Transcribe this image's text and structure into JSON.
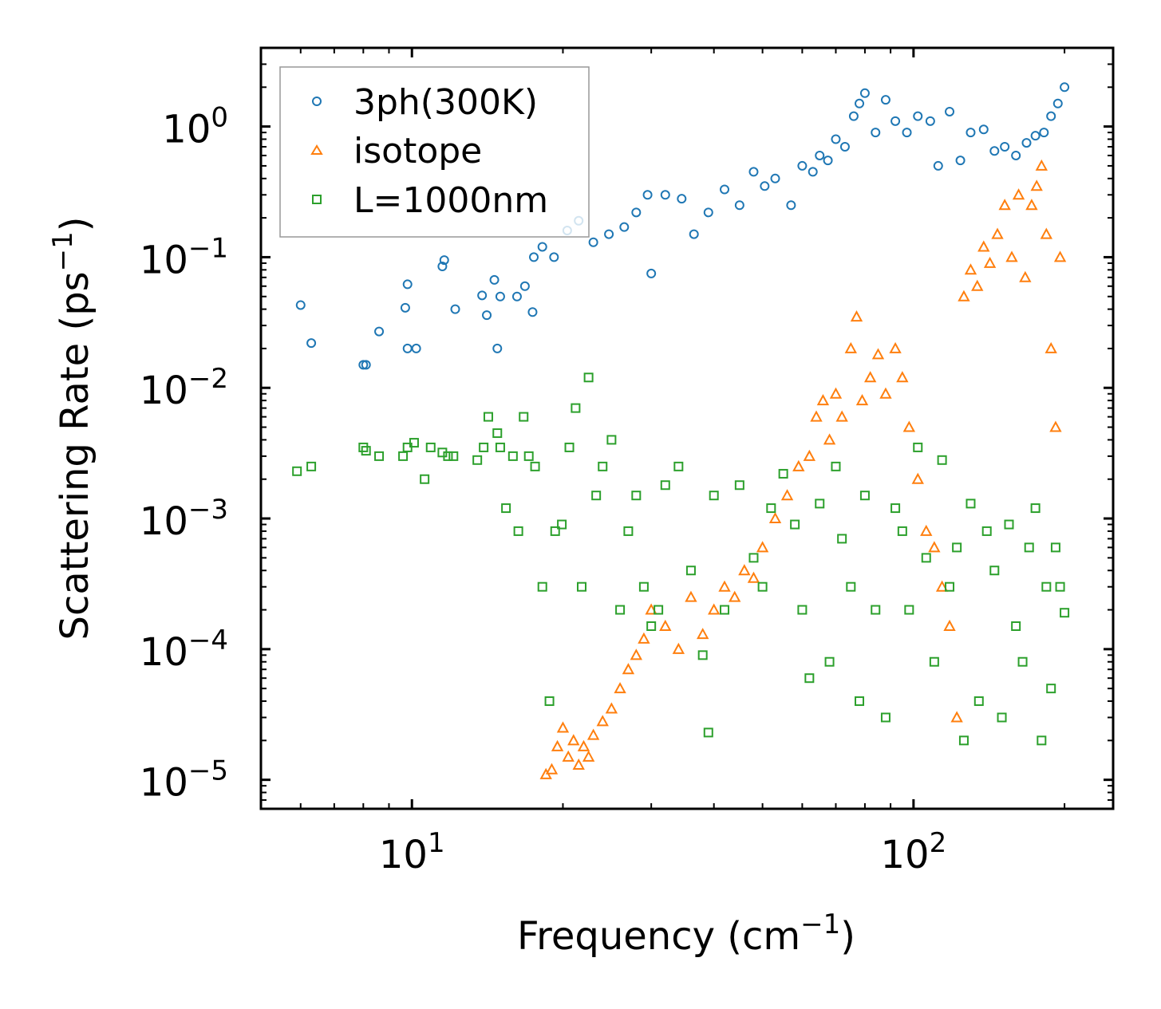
{
  "chart_data": {
    "type": "scatter",
    "xscale": "log",
    "yscale": "log",
    "xlim": [
      5,
      250
    ],
    "ylim": [
      6e-06,
      4
    ],
    "xlabel": {
      "text": "Frequency (cm",
      "sup": "−1",
      "close": ")"
    },
    "ylabel": {
      "text": "Scattering Rate (ps",
      "sup": "−1",
      "close": ")"
    },
    "xticks": [
      {
        "value": 10,
        "base": "10",
        "exp": "1"
      },
      {
        "value": 100,
        "base": "10",
        "exp": "2"
      }
    ],
    "yticks": [
      {
        "value": 1,
        "base": "10",
        "exp": "0"
      },
      {
        "value": 0.1,
        "base": "10",
        "exp": "−1"
      },
      {
        "value": 0.01,
        "base": "10",
        "exp": "−2"
      },
      {
        "value": 0.001,
        "base": "10",
        "exp": "−3"
      },
      {
        "value": 0.0001,
        "base": "10",
        "exp": "−4"
      },
      {
        "value": 1e-05,
        "base": "10",
        "exp": "−5"
      }
    ],
    "legend_position": "top-left",
    "series": [
      {
        "name": "3ph(300K)",
        "marker": "circle",
        "color": "#1f77b4",
        "x": [
          6.0,
          6.3,
          8.0,
          8.1,
          8.6,
          9.7,
          9.8,
          9.8,
          10.2,
          11.5,
          11.6,
          12.2,
          13.8,
          14.1,
          14.6,
          14.8,
          15.0,
          16.2,
          16.8,
          17.4,
          17.5,
          18.2,
          19.2,
          20.4,
          21.5,
          23.0,
          24.7,
          26.5,
          28.0,
          29.5,
          30.0,
          32.0,
          34.5,
          36.5,
          39.0,
          42.0,
          45.0,
          48.0,
          50.5,
          53.0,
          57.0,
          60.0,
          63.0,
          65.0,
          67.5,
          70.0,
          73.0,
          76.0,
          78.0,
          80.0,
          84.0,
          88.0,
          92.0,
          97.0,
          102.0,
          108.0,
          112.0,
          118.0,
          124.0,
          130.0,
          138.0,
          145.0,
          152.0,
          160.0,
          168.0,
          175.0,
          182.0,
          188.0,
          194.0,
          200.0
        ],
        "y": [
          0.043,
          0.022,
          0.015,
          0.015,
          0.027,
          0.041,
          0.062,
          0.02,
          0.02,
          0.085,
          0.095,
          0.04,
          0.051,
          0.036,
          0.067,
          0.02,
          0.05,
          0.05,
          0.06,
          0.038,
          0.1,
          0.12,
          0.1,
          0.16,
          0.19,
          0.13,
          0.15,
          0.17,
          0.22,
          0.3,
          0.075,
          0.3,
          0.28,
          0.15,
          0.22,
          0.33,
          0.25,
          0.45,
          0.35,
          0.4,
          0.25,
          0.5,
          0.45,
          0.6,
          0.55,
          0.8,
          0.7,
          1.2,
          1.5,
          1.8,
          0.9,
          1.6,
          1.1,
          0.9,
          1.2,
          1.1,
          0.5,
          1.3,
          0.55,
          0.9,
          0.95,
          0.65,
          0.7,
          0.6,
          0.75,
          0.85,
          0.9,
          1.2,
          1.5,
          2.0
        ]
      },
      {
        "name": "isotope",
        "marker": "triangle",
        "color": "#ff7f0e",
        "x": [
          18.5,
          19.0,
          19.5,
          20.0,
          20.5,
          21.0,
          21.5,
          22.0,
          22.5,
          23.0,
          24.0,
          25.0,
          26.0,
          27.0,
          28.0,
          29.0,
          30.0,
          32.0,
          34.0,
          36.0,
          38.0,
          40.0,
          42.0,
          44.0,
          46.0,
          48.0,
          50.0,
          53.0,
          56.0,
          59.0,
          62.0,
          64.0,
          66.0,
          68.0,
          70.0,
          72.0,
          75.0,
          77.0,
          79.0,
          82.0,
          85.0,
          88.0,
          92.0,
          95.0,
          98.0,
          102.0,
          106.0,
          110.0,
          114.0,
          118.0,
          122.0,
          126.0,
          130.0,
          134.0,
          138.0,
          142.0,
          147.0,
          152.0,
          157.0,
          162.0,
          167.0,
          172.0,
          176.0,
          180.0,
          184.0,
          188.0,
          192.0,
          196.0
        ],
        "y": [
          1.1e-05,
          1.2e-05,
          1.8e-05,
          2.5e-05,
          1.5e-05,
          2e-05,
          1.3e-05,
          1.8e-05,
          1.5e-05,
          2.2e-05,
          2.8e-05,
          3.5e-05,
          5e-05,
          7e-05,
          9e-05,
          0.00012,
          0.0002,
          0.00015,
          0.0001,
          0.00025,
          0.00013,
          0.0002,
          0.0003,
          0.00025,
          0.0004,
          0.00035,
          0.0006,
          0.001,
          0.0015,
          0.0025,
          0.003,
          0.006,
          0.008,
          0.004,
          0.009,
          0.006,
          0.02,
          0.035,
          0.008,
          0.012,
          0.018,
          0.009,
          0.02,
          0.012,
          0.005,
          0.002,
          0.0008,
          0.0006,
          0.0003,
          0.00015,
          3e-05,
          0.05,
          0.08,
          0.06,
          0.12,
          0.09,
          0.15,
          0.25,
          0.1,
          0.3,
          0.07,
          0.25,
          0.35,
          0.5,
          0.15,
          0.02,
          0.005,
          0.1
        ]
      },
      {
        "name": "L=1000nm",
        "marker": "square",
        "color": "#2ca02c",
        "x": [
          5.9,
          6.3,
          8.0,
          8.1,
          8.6,
          9.6,
          9.8,
          10.1,
          10.6,
          10.9,
          11.5,
          11.8,
          12.1,
          13.5,
          13.9,
          14.2,
          14.8,
          15.0,
          15.4,
          15.9,
          16.3,
          16.7,
          17.1,
          17.6,
          18.2,
          18.8,
          19.3,
          19.9,
          20.6,
          21.2,
          21.8,
          22.5,
          23.3,
          24.0,
          25.0,
          26.0,
          27.0,
          28.0,
          29.0,
          30.0,
          31.0,
          32.0,
          34.0,
          36.0,
          38.0,
          39.0,
          40.0,
          42.0,
          45.0,
          48.0,
          50.0,
          52.0,
          55.0,
          58.0,
          60.0,
          62.0,
          65.0,
          68.0,
          70.0,
          72.0,
          75.0,
          78.0,
          80.0,
          84.0,
          88.0,
          92.0,
          95.0,
          98.0,
          102.0,
          106.0,
          110.0,
          114.0,
          118.0,
          122.0,
          126.0,
          130.0,
          135.0,
          140.0,
          145.0,
          150.0,
          155.0,
          160.0,
          165.0,
          170.0,
          175.0,
          180.0,
          184.0,
          188.0,
          192.0,
          196.0,
          200.0
        ],
        "y": [
          0.0023,
          0.0025,
          0.0035,
          0.0033,
          0.003,
          0.003,
          0.0035,
          0.0038,
          0.002,
          0.0035,
          0.0032,
          0.003,
          0.003,
          0.0028,
          0.0035,
          0.006,
          0.0045,
          0.0035,
          0.0012,
          0.003,
          0.0008,
          0.006,
          0.003,
          0.0025,
          0.0003,
          4e-05,
          0.0008,
          0.0009,
          0.0035,
          0.007,
          0.0003,
          0.012,
          0.0015,
          0.0025,
          0.004,
          0.0002,
          0.0008,
          0.0015,
          0.0003,
          0.00015,
          0.0002,
          0.0018,
          0.0025,
          0.0004,
          9e-05,
          2.3e-05,
          0.0015,
          0.0002,
          0.0018,
          0.0005,
          0.0003,
          0.0012,
          0.0022,
          0.0009,
          0.0002,
          6e-05,
          0.0013,
          8e-05,
          0.0025,
          0.0007,
          0.0003,
          4e-05,
          0.0015,
          0.0002,
          3e-05,
          0.0012,
          0.0008,
          0.0002,
          0.0035,
          0.0005,
          8e-05,
          0.0028,
          0.0003,
          0.0006,
          2e-05,
          0.0013,
          4e-05,
          0.0008,
          0.0004,
          3e-05,
          0.0009,
          0.00015,
          8e-05,
          0.0006,
          0.0012,
          2e-05,
          0.0003,
          5e-05,
          0.0006,
          0.0003,
          0.00019
        ]
      }
    ]
  }
}
